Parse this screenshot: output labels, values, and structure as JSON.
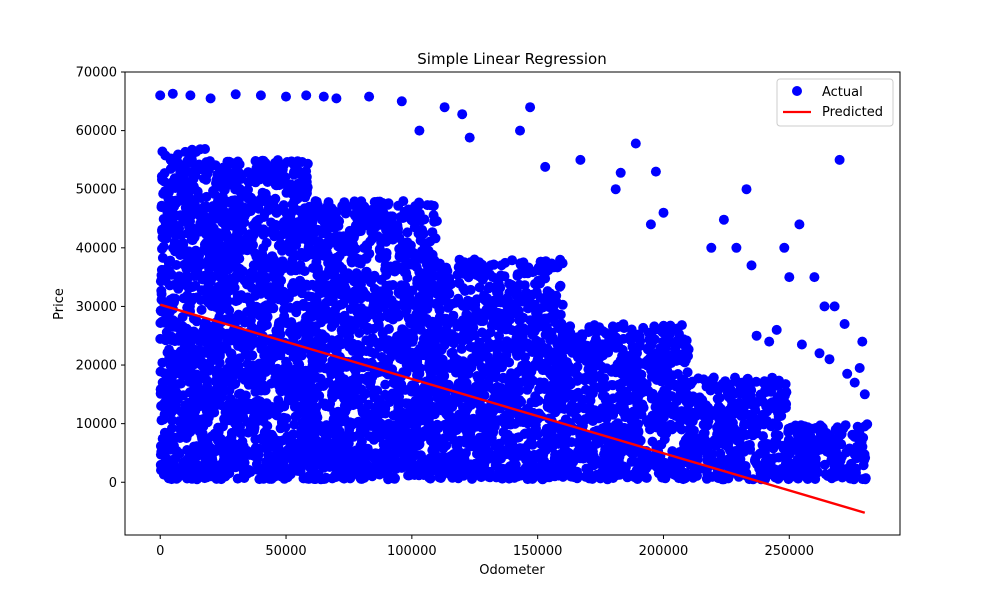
{
  "chart_data": {
    "type": "scatter",
    "title": "Simple Linear Regression",
    "xlabel": "Odometer",
    "ylabel": "Price",
    "xlim": [
      -14000,
      294000
    ],
    "ylim": [
      -9000,
      70000
    ],
    "xticks": [
      0,
      50000,
      100000,
      150000,
      200000,
      250000
    ],
    "yticks": [
      0,
      10000,
      20000,
      30000,
      40000,
      50000,
      60000,
      70000
    ],
    "grid": false,
    "legend_position": "top-right",
    "series": [
      {
        "name": "Actual",
        "kind": "scatter",
        "color": "#0000ff",
        "density_bands": [
          {
            "x_range": [
              0,
              20000
            ],
            "y_range": [
              500,
              57000
            ]
          },
          {
            "x_range": [
              20000,
              60000
            ],
            "y_range": [
              500,
              55000
            ]
          },
          {
            "x_range": [
              60000,
              110000
            ],
            "y_range": [
              500,
              48000
            ]
          },
          {
            "x_range": [
              110000,
              160000
            ],
            "y_range": [
              500,
              38000
            ]
          },
          {
            "x_range": [
              160000,
              210000
            ],
            "y_range": [
              500,
              27000
            ]
          },
          {
            "x_range": [
              210000,
              250000
            ],
            "y_range": [
              500,
              18000
            ]
          },
          {
            "x_range": [
              250000,
              281000
            ],
            "y_range": [
              500,
              10000
            ]
          }
        ],
        "outliers": [
          [
            0,
            66000
          ],
          [
            5000,
            66300
          ],
          [
            12000,
            66000
          ],
          [
            20000,
            65500
          ],
          [
            30000,
            66200
          ],
          [
            40000,
            66000
          ],
          [
            50000,
            65800
          ],
          [
            58000,
            66000
          ],
          [
            65000,
            65800
          ],
          [
            70000,
            65500
          ],
          [
            83000,
            65800
          ],
          [
            96000,
            65000
          ],
          [
            113000,
            64000
          ],
          [
            147000,
            64000
          ],
          [
            120000,
            62800
          ],
          [
            143000,
            60000
          ],
          [
            103000,
            60000
          ],
          [
            123000,
            58800
          ],
          [
            189000,
            57800
          ],
          [
            167000,
            55000
          ],
          [
            270000,
            55000
          ],
          [
            153000,
            53800
          ],
          [
            183000,
            52800
          ],
          [
            197000,
            53000
          ],
          [
            181000,
            50000
          ],
          [
            233000,
            50000
          ],
          [
            224000,
            44800
          ],
          [
            254000,
            44000
          ],
          [
            200000,
            46000
          ],
          [
            195000,
            44000
          ],
          [
            248000,
            40000
          ],
          [
            219000,
            40000
          ],
          [
            229000,
            40000
          ],
          [
            235000,
            37000
          ],
          [
            260000,
            35000
          ],
          [
            250000,
            35000
          ],
          [
            264000,
            30000
          ],
          [
            268000,
            30000
          ],
          [
            272000,
            27000
          ],
          [
            279000,
            24000
          ],
          [
            266000,
            21000
          ],
          [
            278000,
            19500
          ],
          [
            276000,
            17000
          ],
          [
            280000,
            15000
          ],
          [
            273000,
            18500
          ],
          [
            237000,
            25000
          ],
          [
            242000,
            24000
          ],
          [
            255000,
            23500
          ],
          [
            262000,
            22000
          ],
          [
            245000,
            26000
          ]
        ]
      },
      {
        "name": "Predicted",
        "kind": "line",
        "color": "#ff0000",
        "x": [
          0,
          280000
        ],
        "y": [
          30300,
          -5200
        ]
      }
    ]
  }
}
